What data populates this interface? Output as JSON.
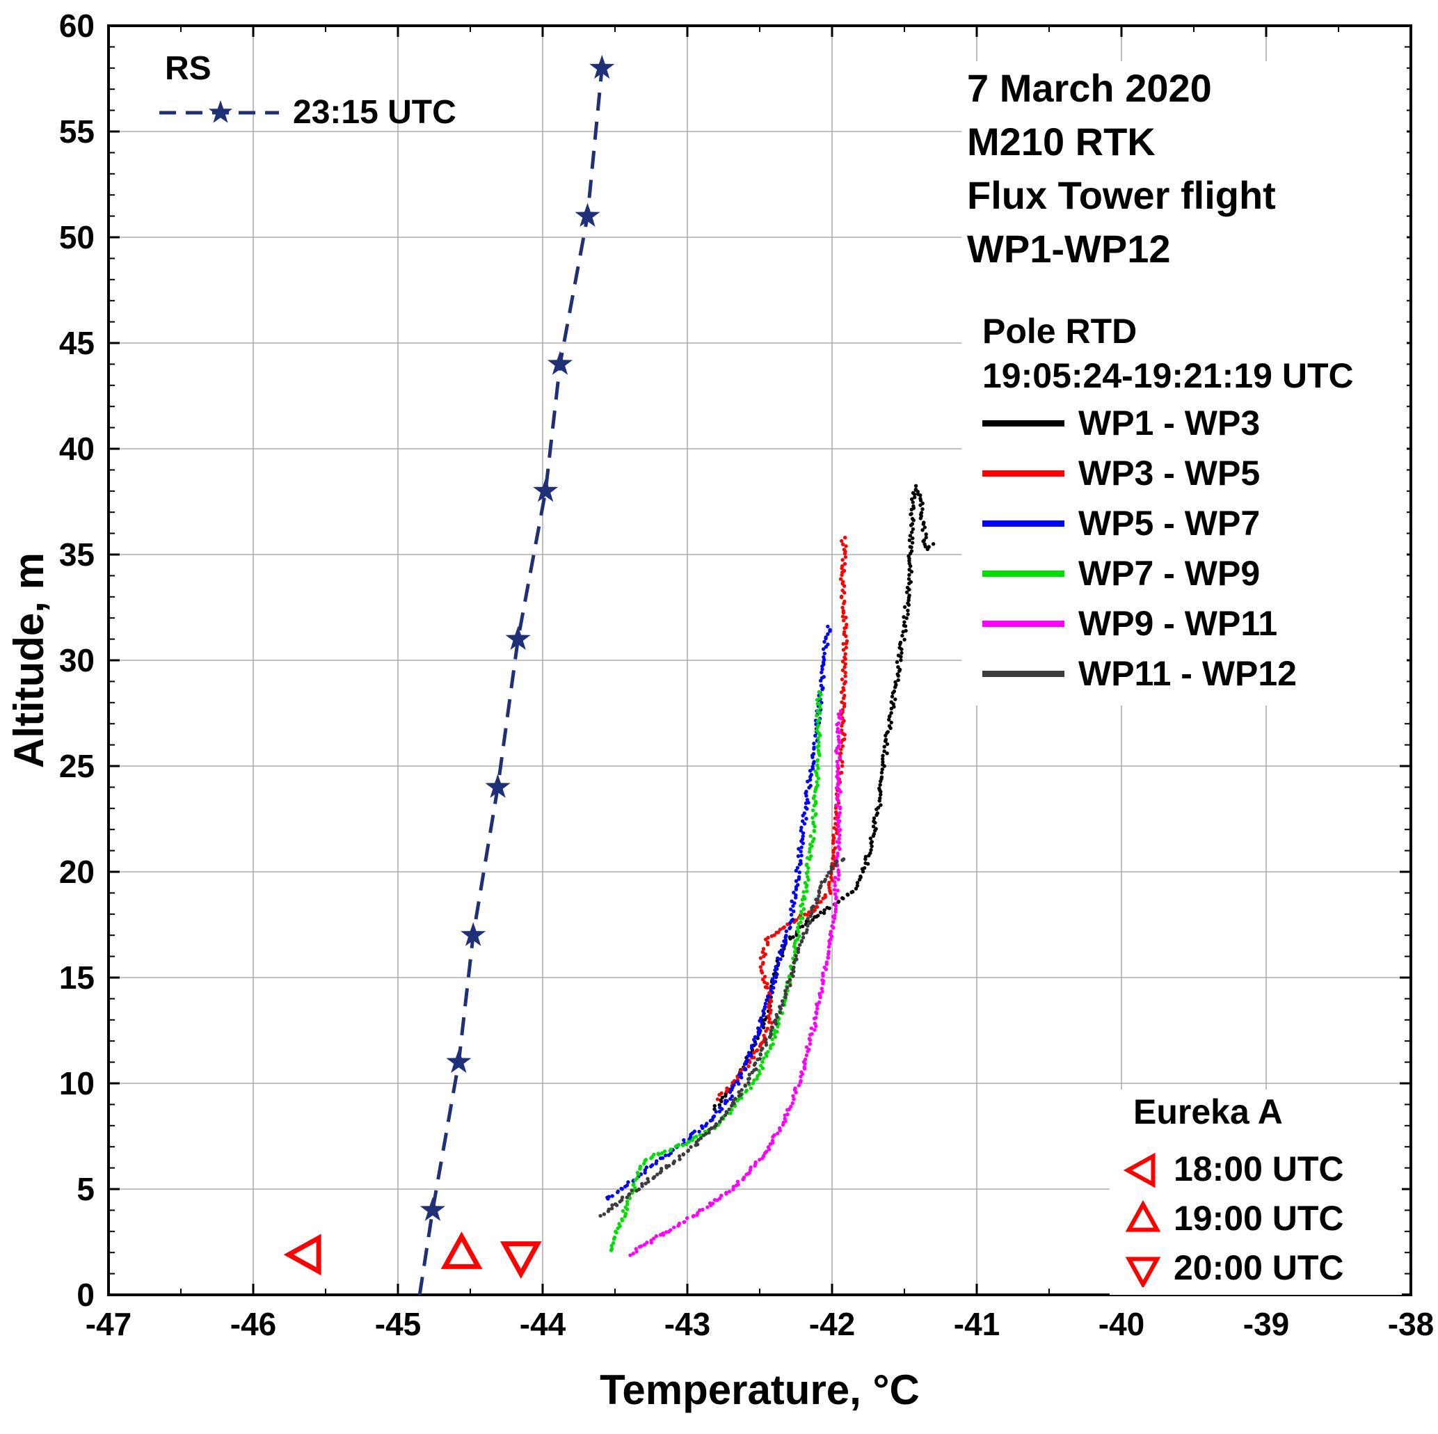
{
  "chart_data": {
    "type": "scatter",
    "xlabel": "Temperature, °C",
    "ylabel": "Altitude, m",
    "xlim": [
      -47,
      -38
    ],
    "ylim": [
      0,
      60
    ],
    "xticks": [
      -47,
      -46,
      -45,
      -44,
      -43,
      -42,
      -41,
      -40,
      -39,
      -38
    ],
    "yticks": [
      0,
      5,
      10,
      15,
      20,
      25,
      30,
      35,
      40,
      45,
      50,
      55,
      60
    ],
    "grid": true,
    "grid_color": "#adadad",
    "frame_color": "#000000",
    "annotations": {
      "title_lines": [
        "7 March 2020",
        "M210 RTK",
        "Flux Tower flight",
        "WP1-WP12"
      ],
      "rs_heading": "RS",
      "pole_heading": "Pole RTD",
      "pole_sub": "19:05:24-19:21:19 UTC",
      "eureka_heading": "Eureka A"
    },
    "series": [
      {
        "name": "RS",
        "label": "23:15 UTC",
        "kind": "line",
        "dash": true,
        "marker": "star",
        "color": "#1f3078",
        "points": [
          [
            -44.85,
            0
          ],
          [
            -44.76,
            4
          ],
          [
            -44.58,
            11
          ],
          [
            -44.48,
            17
          ],
          [
            -44.31,
            24
          ],
          [
            -44.17,
            31
          ],
          [
            -43.98,
            38
          ],
          [
            -43.88,
            44
          ],
          [
            -43.69,
            51
          ],
          [
            -43.59,
            58
          ]
        ]
      },
      {
        "name": "WP1 - WP3",
        "kind": "dots",
        "color": "#000000",
        "points": [
          [
            -42.82,
            8.8
          ],
          [
            -42.72,
            9.6
          ],
          [
            -42.6,
            10.8
          ],
          [
            -42.5,
            12.2
          ],
          [
            -42.42,
            13.8
          ],
          [
            -42.38,
            15.4
          ],
          [
            -42.32,
            16.6
          ],
          [
            -42.18,
            17.6
          ],
          [
            -42.0,
            18.4
          ],
          [
            -41.85,
            19.2
          ],
          [
            -41.78,
            20.2
          ],
          [
            -41.72,
            21.8
          ],
          [
            -41.66,
            23.6
          ],
          [
            -41.62,
            25.6
          ],
          [
            -41.58,
            27.8
          ],
          [
            -41.54,
            30.0
          ],
          [
            -41.5,
            32.2
          ],
          [
            -41.47,
            34.4
          ],
          [
            -41.45,
            36.2
          ],
          [
            -41.43,
            37.6
          ],
          [
            -41.42,
            38.2
          ],
          [
            -41.38,
            37.8
          ],
          [
            -41.36,
            36.4
          ],
          [
            -41.34,
            35.2
          ],
          [
            -41.3,
            35.5
          ]
        ]
      },
      {
        "name": "WP3 - WP5",
        "kind": "dots",
        "color": "#ff0000",
        "points": [
          [
            -42.77,
            9.3
          ],
          [
            -42.62,
            10.4
          ],
          [
            -42.5,
            11.6
          ],
          [
            -42.42,
            12.8
          ],
          [
            -42.44,
            14.2
          ],
          [
            -42.5,
            15.6
          ],
          [
            -42.46,
            16.8
          ],
          [
            -42.3,
            17.6
          ],
          [
            -42.12,
            18.2
          ],
          [
            -42.02,
            19.0
          ],
          [
            -41.98,
            20.4
          ],
          [
            -41.96,
            22.2
          ],
          [
            -41.95,
            24.2
          ],
          [
            -41.93,
            26.2
          ],
          [
            -41.94,
            28.2
          ],
          [
            -41.92,
            30.2
          ],
          [
            -41.91,
            32.0
          ],
          [
            -41.92,
            33.6
          ],
          [
            -41.9,
            35.0
          ],
          [
            -41.91,
            35.8
          ]
        ]
      },
      {
        "name": "WP5 - WP7",
        "kind": "dots",
        "color": "#0000ff",
        "points": [
          [
            -43.56,
            4.5
          ],
          [
            -43.42,
            5.2
          ],
          [
            -43.28,
            6.0
          ],
          [
            -43.12,
            6.8
          ],
          [
            -42.96,
            7.6
          ],
          [
            -42.82,
            8.4
          ],
          [
            -42.7,
            9.4
          ],
          [
            -42.6,
            10.6
          ],
          [
            -42.52,
            12.0
          ],
          [
            -42.46,
            13.4
          ],
          [
            -42.4,
            14.8
          ],
          [
            -42.36,
            16.2
          ],
          [
            -42.3,
            17.4
          ],
          [
            -42.28,
            18.6
          ],
          [
            -42.25,
            19.8
          ],
          [
            -42.22,
            21.2
          ],
          [
            -42.18,
            22.8
          ],
          [
            -42.14,
            24.6
          ],
          [
            -42.1,
            26.4
          ],
          [
            -42.08,
            28.2
          ],
          [
            -42.06,
            29.8
          ],
          [
            -42.05,
            31.0
          ],
          [
            -42.03,
            31.6
          ]
        ]
      },
      {
        "name": "WP7 - WP9",
        "kind": "dots",
        "color": "#00dd00",
        "points": [
          [
            -43.54,
            2.1
          ],
          [
            -43.5,
            2.9
          ],
          [
            -43.44,
            3.8
          ],
          [
            -43.38,
            4.8
          ],
          [
            -43.33,
            5.9
          ],
          [
            -43.25,
            6.5
          ],
          [
            -43.1,
            6.9
          ],
          [
            -42.95,
            7.3
          ],
          [
            -42.82,
            7.9
          ],
          [
            -42.7,
            8.7
          ],
          [
            -42.58,
            9.8
          ],
          [
            -42.48,
            11.0
          ],
          [
            -42.4,
            12.4
          ],
          [
            -42.34,
            13.8
          ],
          [
            -42.28,
            15.2
          ],
          [
            -42.24,
            16.6
          ],
          [
            -42.2,
            18.0
          ],
          [
            -42.17,
            19.4
          ],
          [
            -42.15,
            20.8
          ],
          [
            -42.13,
            22.4
          ],
          [
            -42.12,
            24.0
          ],
          [
            -42.11,
            25.6
          ],
          [
            -42.1,
            27.2
          ],
          [
            -42.09,
            28.5
          ]
        ]
      },
      {
        "name": "WP9 - WP11",
        "kind": "dots",
        "color": "#ff00ff",
        "points": [
          [
            -43.38,
            1.9
          ],
          [
            -43.28,
            2.4
          ],
          [
            -43.15,
            2.9
          ],
          [
            -43.0,
            3.5
          ],
          [
            -42.85,
            4.2
          ],
          [
            -42.7,
            5.0
          ],
          [
            -42.57,
            5.9
          ],
          [
            -42.46,
            6.9
          ],
          [
            -42.36,
            8.0
          ],
          [
            -42.27,
            9.3
          ],
          [
            -42.19,
            10.8
          ],
          [
            -42.12,
            12.5
          ],
          [
            -42.07,
            14.4
          ],
          [
            -42.02,
            16.4
          ],
          [
            -41.99,
            18.4
          ],
          [
            -41.97,
            20.4
          ],
          [
            -41.96,
            22.4
          ],
          [
            -41.95,
            24.4
          ],
          [
            -41.95,
            26.0
          ],
          [
            -41.94,
            27.6
          ]
        ]
      },
      {
        "name": "WP11 - WP12",
        "kind": "dots",
        "color": "#3d3d3d",
        "points": [
          [
            -43.59,
            3.8
          ],
          [
            -43.46,
            4.5
          ],
          [
            -43.32,
            5.2
          ],
          [
            -43.18,
            5.9
          ],
          [
            -43.04,
            6.6
          ],
          [
            -42.9,
            7.4
          ],
          [
            -42.77,
            8.3
          ],
          [
            -42.65,
            9.3
          ],
          [
            -42.54,
            10.5
          ],
          [
            -42.44,
            11.9
          ],
          [
            -42.36,
            13.4
          ],
          [
            -42.29,
            14.9
          ],
          [
            -42.23,
            16.4
          ],
          [
            -42.17,
            17.8
          ],
          [
            -42.1,
            19.0
          ],
          [
            -42.03,
            19.9
          ],
          [
            -41.97,
            20.4
          ],
          [
            -41.92,
            20.6
          ]
        ]
      },
      {
        "name": "Eureka A 18:00 UTC",
        "label": "18:00 UTC",
        "kind": "marker",
        "marker": "triangle-left",
        "color": "#ff0000",
        "points": [
          [
            -45.63,
            1.9
          ]
        ]
      },
      {
        "name": "Eureka A 19:00 UTC",
        "label": "19:00 UTC",
        "kind": "marker",
        "marker": "triangle-up",
        "color": "#ff0000",
        "points": [
          [
            -44.56,
            1.9
          ]
        ]
      },
      {
        "name": "Eureka A 20:00 UTC",
        "label": "20:00 UTC",
        "kind": "marker",
        "marker": "triangle-down",
        "color": "#ff0000",
        "points": [
          [
            -44.15,
            1.85
          ]
        ]
      }
    ]
  }
}
